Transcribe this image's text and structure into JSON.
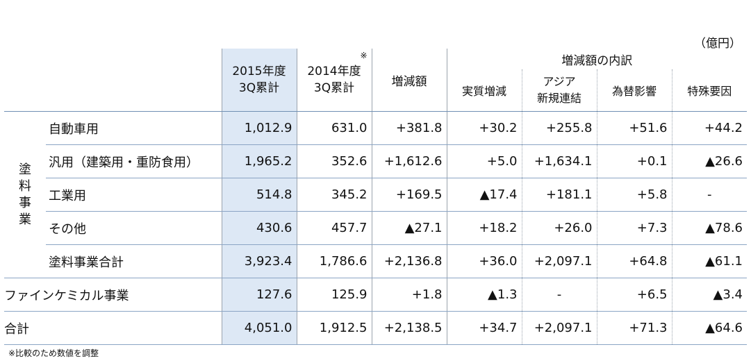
{
  "unit": "（億円）",
  "note": "※比較のため数値を調整",
  "headers": {
    "fy2015": [
      "2015年度",
      "3Q累計"
    ],
    "fy2014": [
      "2014年度",
      "3Q累計"
    ],
    "fy2014_mark": "※",
    "change": "増減額",
    "breakdown": "増減額の内訳",
    "real_change": "実質増減",
    "asia": [
      "アジア",
      "新規連結"
    ],
    "fx": "為替影響",
    "special": "特殊要因"
  },
  "group_label": [
    "塗",
    "料",
    "事",
    "業"
  ],
  "rows": [
    {
      "label": "自動車用",
      "fy2015": "1,012.9",
      "fy2014": "631.0",
      "change": "+381.8",
      "real": "+30.2",
      "asia": "+255.8",
      "fx": "+51.6",
      "special": "+44.2"
    },
    {
      "label": "汎用（建築用・重防食用）",
      "fy2015": "1,965.2",
      "fy2014": "352.6",
      "change": "+1,612.6",
      "real": "+5.0",
      "asia": "+1,634.1",
      "fx": "+0.1",
      "special": "▲26.6"
    },
    {
      "label": "工業用",
      "fy2015": "514.8",
      "fy2014": "345.2",
      "change": "+169.5",
      "real": "▲17.4",
      "asia": "+181.1",
      "fx": "+5.8",
      "special": "-"
    },
    {
      "label": "その他",
      "fy2015": "430.6",
      "fy2014": "457.7",
      "change": "▲27.1",
      "real": "+18.2",
      "asia": "+26.0",
      "fx": "+7.3",
      "special": "▲78.6"
    },
    {
      "label": "塗料事業合計",
      "fy2015": "3,923.4",
      "fy2014": "1,786.6",
      "change": "+2,136.8",
      "real": "+36.0",
      "asia": "+2,097.1",
      "fx": "+64.8",
      "special": "▲61.1"
    },
    {
      "label": "ファインケミカル事業",
      "fy2015": "127.6",
      "fy2014": "125.9",
      "change": "+1.8",
      "real": "▲1.3",
      "asia": "-",
      "fx": "+6.5",
      "special": "▲3.4"
    },
    {
      "label": "合計",
      "fy2015": "4,051.0",
      "fy2014": "1,912.5",
      "change": "+2,138.5",
      "real": "+34.7",
      "asia": "+2,097.1",
      "fx": "+71.3",
      "special": "▲64.6"
    }
  ]
}
